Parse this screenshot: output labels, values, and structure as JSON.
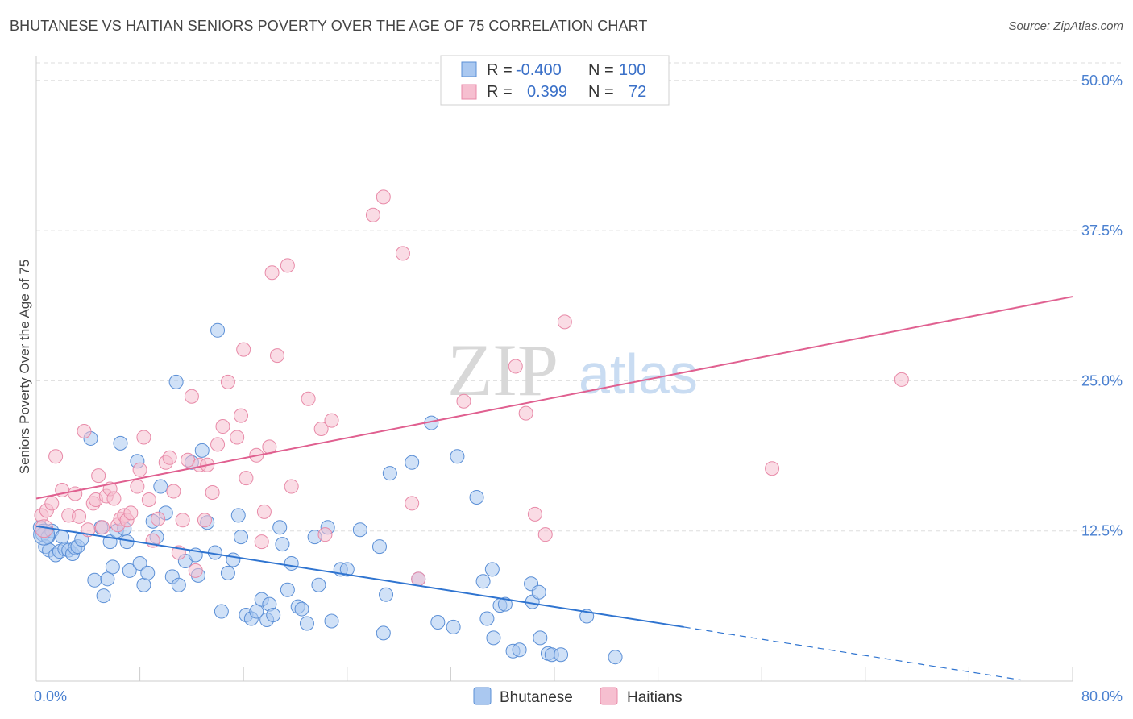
{
  "title": "BHUTANESE VS HAITIAN SENIORS POVERTY OVER THE AGE OF 75 CORRELATION CHART",
  "source": "Source: ZipAtlas.com",
  "watermark": {
    "zip": "ZIP",
    "atlas": "atlas"
  },
  "colors": {
    "bhutanese_fill": "#aac8f0",
    "bhutanese_stroke": "#5b8fd6",
    "bhutanese_line": "#2f74d0",
    "haitians_fill": "#f6bfd0",
    "haitians_stroke": "#e88aa8",
    "haitians_line": "#e06090",
    "tick_text": "#4a80d0",
    "grid": "#dddddd"
  },
  "legend": {
    "rows": [
      {
        "r_label": "R =",
        "r_value": "-0.400",
        "n_label": "N =",
        "n_value": "100"
      },
      {
        "r_label": "R =",
        "r_value": "0.399",
        "n_label": "N =",
        "n_value": "72"
      }
    ]
  },
  "chart_data": {
    "type": "scatter",
    "title": "BHUTANESE VS HAITIAN SENIORS POVERTY OVER THE AGE OF 75 CORRELATION CHART",
    "xlabel": "",
    "ylabel": "Seniors Poverty Over the Age of 75",
    "xlim": [
      0,
      80
    ],
    "ylim": [
      0,
      52
    ],
    "x_tick_labels": [
      "0.0%",
      "80.0%"
    ],
    "y_ticks": [
      12.5,
      25.0,
      37.5,
      50.0
    ],
    "y_tick_labels": [
      "12.5%",
      "25.0%",
      "37.5%",
      "50.0%"
    ],
    "grid": true,
    "legend_position": "top-center",
    "series": [
      {
        "name": "Bhutanese",
        "r": -0.4,
        "n": 100,
        "trend": {
          "x0": 0,
          "y0": 12.9,
          "x1": 50,
          "y1": 4.5,
          "dash_to_x": 76,
          "dash_to_y": 0.1
        },
        "points": [
          [
            0.3,
            12.8
          ],
          [
            0.5,
            12.2
          ],
          [
            0.7,
            11.2
          ],
          [
            0.9,
            12.0
          ],
          [
            1.0,
            10.9
          ],
          [
            1.2,
            12.5
          ],
          [
            1.5,
            10.5
          ],
          [
            1.8,
            10.8
          ],
          [
            2.0,
            12.0
          ],
          [
            2.2,
            11.0
          ],
          [
            2.5,
            10.9
          ],
          [
            2.8,
            10.6
          ],
          [
            3.0,
            11.1
          ],
          [
            3.2,
            11.2
          ],
          [
            3.5,
            11.8
          ],
          [
            4.2,
            20.2
          ],
          [
            4.5,
            8.4
          ],
          [
            5.0,
            12.8
          ],
          [
            5.2,
            7.1
          ],
          [
            5.5,
            8.5
          ],
          [
            5.7,
            11.6
          ],
          [
            5.9,
            9.5
          ],
          [
            6.2,
            12.5
          ],
          [
            6.5,
            19.8
          ],
          [
            6.8,
            12.7
          ],
          [
            7.0,
            11.6
          ],
          [
            7.2,
            9.2
          ],
          [
            7.8,
            18.3
          ],
          [
            8.0,
            9.8
          ],
          [
            8.3,
            8.0
          ],
          [
            8.6,
            9.0
          ],
          [
            9.0,
            13.3
          ],
          [
            9.3,
            12.0
          ],
          [
            9.6,
            16.2
          ],
          [
            10.0,
            14.0
          ],
          [
            10.5,
            8.7
          ],
          [
            10.8,
            24.9
          ],
          [
            11.0,
            8.0
          ],
          [
            11.5,
            10.0
          ],
          [
            12.0,
            18.2
          ],
          [
            12.3,
            10.5
          ],
          [
            12.5,
            8.8
          ],
          [
            12.8,
            19.2
          ],
          [
            13.2,
            13.2
          ],
          [
            13.8,
            10.7
          ],
          [
            14.0,
            29.2
          ],
          [
            14.3,
            5.8
          ],
          [
            14.8,
            9.0
          ],
          [
            15.2,
            10.1
          ],
          [
            15.6,
            13.8
          ],
          [
            15.8,
            12.0
          ],
          [
            16.2,
            5.5
          ],
          [
            16.6,
            5.2
          ],
          [
            17.0,
            5.8
          ],
          [
            17.4,
            6.8
          ],
          [
            17.8,
            5.1
          ],
          [
            18.0,
            6.4
          ],
          [
            18.3,
            5.5
          ],
          [
            18.8,
            12.8
          ],
          [
            19.0,
            11.4
          ],
          [
            19.4,
            7.6
          ],
          [
            19.7,
            9.8
          ],
          [
            20.2,
            6.2
          ],
          [
            20.5,
            6.0
          ],
          [
            20.9,
            4.8
          ],
          [
            21.5,
            12.0
          ],
          [
            21.8,
            8.0
          ],
          [
            22.5,
            12.8
          ],
          [
            22.8,
            5.0
          ],
          [
            23.5,
            9.3
          ],
          [
            24.0,
            9.3
          ],
          [
            25.0,
            12.6
          ],
          [
            26.5,
            11.2
          ],
          [
            26.8,
            4.0
          ],
          [
            27.0,
            7.2
          ],
          [
            27.3,
            17.3
          ],
          [
            29.0,
            18.2
          ],
          [
            29.5,
            8.5
          ],
          [
            30.5,
            21.5
          ],
          [
            31.0,
            4.9
          ],
          [
            32.2,
            4.5
          ],
          [
            32.5,
            18.7
          ],
          [
            34.0,
            15.3
          ],
          [
            34.5,
            8.3
          ],
          [
            34.8,
            5.2
          ],
          [
            35.2,
            9.3
          ],
          [
            35.3,
            3.6
          ],
          [
            35.8,
            6.3
          ],
          [
            36.2,
            6.4
          ],
          [
            36.8,
            2.5
          ],
          [
            37.3,
            2.6
          ],
          [
            38.2,
            8.1
          ],
          [
            38.3,
            6.6
          ],
          [
            38.8,
            7.4
          ],
          [
            38.9,
            3.6
          ],
          [
            39.5,
            2.3
          ],
          [
            39.8,
            2.2
          ],
          [
            40.5,
            2.2
          ],
          [
            42.5,
            5.4
          ],
          [
            44.7,
            2.0
          ]
        ]
      },
      {
        "name": "Haitians",
        "r": 0.399,
        "n": 72,
        "trend": {
          "x0": 0,
          "y0": 15.2,
          "x1": 80,
          "y1": 32.0
        },
        "points": [
          [
            0.4,
            13.8
          ],
          [
            0.8,
            14.2
          ],
          [
            1.2,
            14.8
          ],
          [
            1.5,
            18.7
          ],
          [
            2.0,
            15.9
          ],
          [
            2.5,
            13.8
          ],
          [
            3.0,
            15.6
          ],
          [
            3.3,
            13.7
          ],
          [
            3.7,
            20.8
          ],
          [
            4.0,
            12.6
          ],
          [
            4.4,
            14.8
          ],
          [
            4.6,
            15.1
          ],
          [
            4.8,
            17.1
          ],
          [
            5.1,
            12.8
          ],
          [
            5.4,
            15.4
          ],
          [
            5.7,
            16.0
          ],
          [
            6.0,
            15.2
          ],
          [
            6.3,
            13.0
          ],
          [
            6.5,
            13.5
          ],
          [
            6.8,
            13.8
          ],
          [
            7.0,
            13.4
          ],
          [
            7.3,
            14.0
          ],
          [
            7.8,
            16.2
          ],
          [
            8.0,
            17.6
          ],
          [
            8.3,
            20.3
          ],
          [
            8.7,
            15.1
          ],
          [
            9.0,
            11.7
          ],
          [
            9.4,
            13.5
          ],
          [
            10.0,
            18.2
          ],
          [
            10.3,
            18.6
          ],
          [
            10.6,
            15.8
          ],
          [
            11.0,
            10.7
          ],
          [
            11.3,
            13.4
          ],
          [
            11.7,
            18.4
          ],
          [
            12.0,
            23.7
          ],
          [
            12.3,
            9.2
          ],
          [
            12.6,
            18.0
          ],
          [
            13.0,
            13.4
          ],
          [
            13.2,
            18.0
          ],
          [
            13.6,
            15.7
          ],
          [
            14.0,
            19.7
          ],
          [
            14.4,
            21.2
          ],
          [
            14.8,
            24.9
          ],
          [
            15.5,
            20.3
          ],
          [
            15.8,
            22.1
          ],
          [
            16.0,
            27.6
          ],
          [
            16.2,
            16.9
          ],
          [
            17.0,
            18.8
          ],
          [
            17.4,
            11.6
          ],
          [
            17.6,
            14.1
          ],
          [
            18.0,
            19.5
          ],
          [
            18.2,
            34.0
          ],
          [
            18.6,
            27.1
          ],
          [
            19.4,
            34.6
          ],
          [
            19.7,
            16.2
          ],
          [
            21.0,
            23.5
          ],
          [
            22.0,
            21.0
          ],
          [
            22.3,
            12.2
          ],
          [
            22.8,
            21.7
          ],
          [
            26.0,
            38.8
          ],
          [
            26.8,
            40.3
          ],
          [
            28.3,
            35.6
          ],
          [
            29.0,
            14.8
          ],
          [
            29.5,
            8.5
          ],
          [
            33.0,
            23.3
          ],
          [
            37.0,
            26.2
          ],
          [
            37.8,
            22.3
          ],
          [
            38.5,
            13.9
          ],
          [
            39.3,
            12.2
          ],
          [
            40.8,
            29.9
          ],
          [
            56.8,
            17.7
          ],
          [
            66.8,
            25.1
          ]
        ]
      }
    ]
  },
  "bottom_legend": {
    "items": [
      "Bhutanese",
      "Haitians"
    ]
  }
}
